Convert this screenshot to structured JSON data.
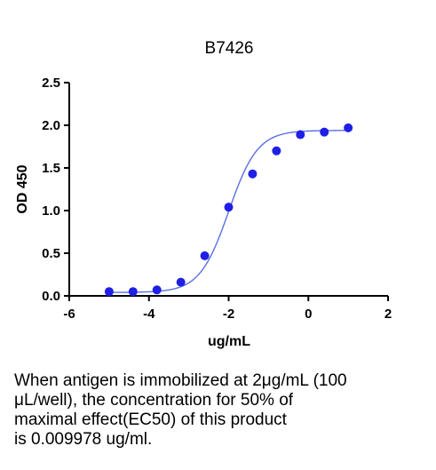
{
  "chart_data": {
    "type": "scatter",
    "title": "B7426",
    "xlabel": "ug/mL",
    "ylabel": "OD 450",
    "xlim": [
      -6,
      2
    ],
    "ylim": [
      0,
      2.5
    ],
    "x_ticks": [
      "-6",
      "-4",
      "-2",
      "0",
      "2"
    ],
    "y_ticks": [
      "0.0",
      "0.5",
      "1.0",
      "1.5",
      "2.0",
      "2.5"
    ],
    "x_tick_values": [
      -6,
      -4,
      -2,
      0,
      2
    ],
    "y_tick_values": [
      0,
      0.5,
      1.0,
      1.5,
      2.0,
      2.5
    ],
    "x_log10": true,
    "grid": false,
    "series": [
      {
        "x": [
          -5.0,
          -4.4,
          -3.8,
          -3.2,
          -2.6,
          -2.0,
          -1.4,
          -0.8,
          -0.2,
          0.4,
          1.0
        ],
        "y": [
          0.05,
          0.05,
          0.07,
          0.16,
          0.47,
          1.04,
          1.43,
          1.7,
          1.89,
          1.92,
          1.97
        ]
      }
    ],
    "fit_curve": {
      "type": "4PL",
      "bottom": 0.04,
      "top": 1.94,
      "log_ec50": -2.0,
      "hill_slope": 1.2
    },
    "colors": {
      "points": "#1f1fe6",
      "curve": "#5a6fe0",
      "axis": "#000000"
    }
  },
  "caption": {
    "lines": [
      "When antigen is immobilized at 2μg/mL (100",
      "μL/well), the concentration for 50% of",
      "maximal effect(EC50) of this product",
      "is 0.009978 ug/ml."
    ]
  }
}
